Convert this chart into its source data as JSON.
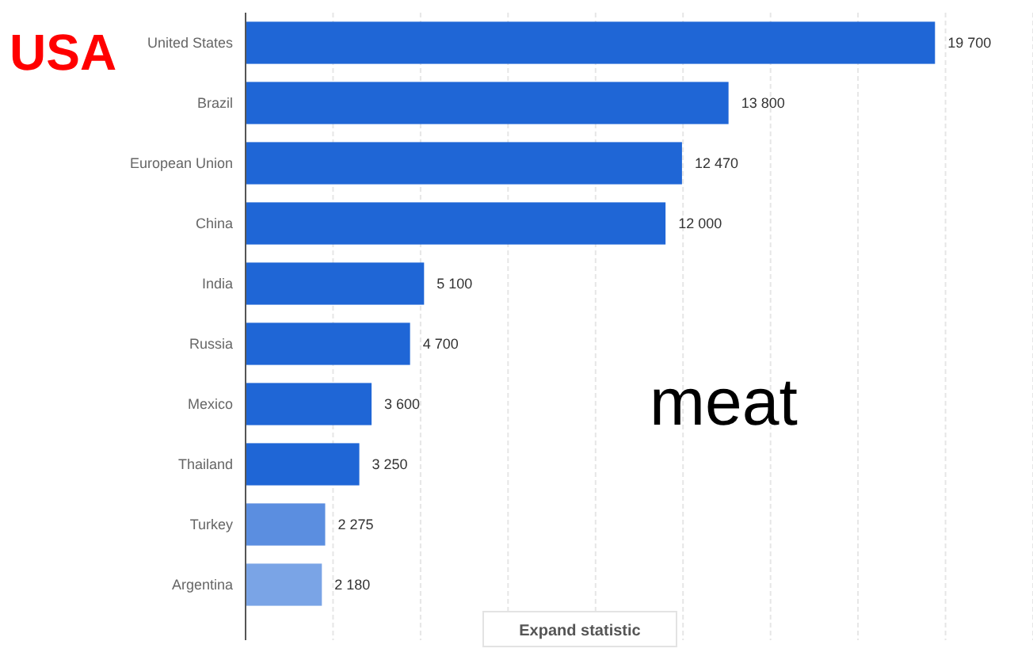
{
  "chart_data": {
    "type": "bar",
    "orientation": "horizontal",
    "categories": [
      "United States",
      "Brazil",
      "European Union",
      "China",
      "India",
      "Russia",
      "Mexico",
      "Thailand",
      "Turkey",
      "Argentina"
    ],
    "values": [
      19700,
      13800,
      12470,
      12000,
      5100,
      4700,
      3600,
      3250,
      2275,
      2180
    ],
    "value_labels": [
      "19 700",
      "13 800",
      "12 470",
      "12 000",
      "5 100",
      "4 700",
      "3 600",
      "3 250",
      "2 275",
      "2 180"
    ],
    "colors": [
      "#1f66d6",
      "#1f66d6",
      "#1f66d6",
      "#1f66d6",
      "#1f66d6",
      "#1f66d6",
      "#1f66d6",
      "#1f66d6",
      "#5b8ee0",
      "#7aa4e6"
    ],
    "xlim": [
      0,
      22500
    ],
    "xticks": [
      {
        "value": 0,
        "label": null
      },
      {
        "value": 2500,
        "label": null
      },
      {
        "value": 5000,
        "label": null
      },
      {
        "value": 7500,
        "label": null
      },
      {
        "value": 10000,
        "label": null
      },
      {
        "value": 12500,
        "label": null
      },
      {
        "value": 15000,
        "label": null
      },
      {
        "value": 17500,
        "label": null
      },
      {
        "value": 20000,
        "label": null
      },
      {
        "value": 22500,
        "label": null
      }
    ],
    "tick_labels": "y",
    "grid": "x",
    "annotations": [
      "USA",
      "meat",
      "Expand statistic"
    ]
  }
}
